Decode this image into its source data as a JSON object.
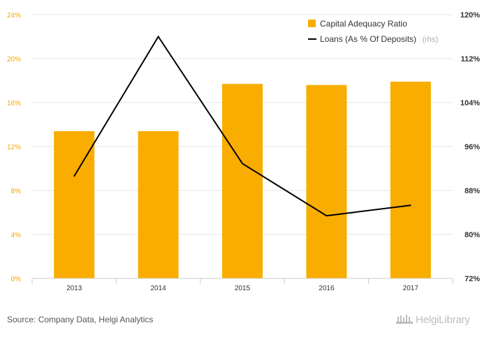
{
  "chart_data": {
    "type": "bar",
    "categories": [
      "2013",
      "2014",
      "2015",
      "2016",
      "2017"
    ],
    "series": [
      {
        "name": "Capital Adequacy Ratio",
        "type": "bar",
        "axis": "left",
        "color": "#f9ad00",
        "values": [
          13.4,
          13.4,
          17.7,
          17.6,
          17.9
        ]
      },
      {
        "name": "Loans (As % Of Deposits)",
        "name_suffix": "(rhs)",
        "type": "line",
        "axis": "right",
        "color": "#000000",
        "values": [
          90.6,
          116.0,
          92.9,
          83.4,
          85.3
        ]
      }
    ],
    "y_left": {
      "min": 0,
      "max": 24,
      "ticks": [
        0,
        4,
        8,
        12,
        16,
        20,
        24
      ],
      "tick_labels": [
        "0%",
        "4%",
        "8%",
        "12%",
        "16%",
        "20%",
        "24%"
      ]
    },
    "y_right": {
      "min": 72,
      "max": 120,
      "ticks": [
        72,
        80,
        88,
        96,
        104,
        112,
        120
      ],
      "tick_labels": [
        "72%",
        "80%",
        "88%",
        "96%",
        "104%",
        "112%",
        "120%"
      ]
    },
    "grid": true,
    "legend_position": "top-right"
  },
  "footer": {
    "source": "Source: Company Data, Helgi Analytics",
    "logo_text": "HelgiLibrary"
  }
}
